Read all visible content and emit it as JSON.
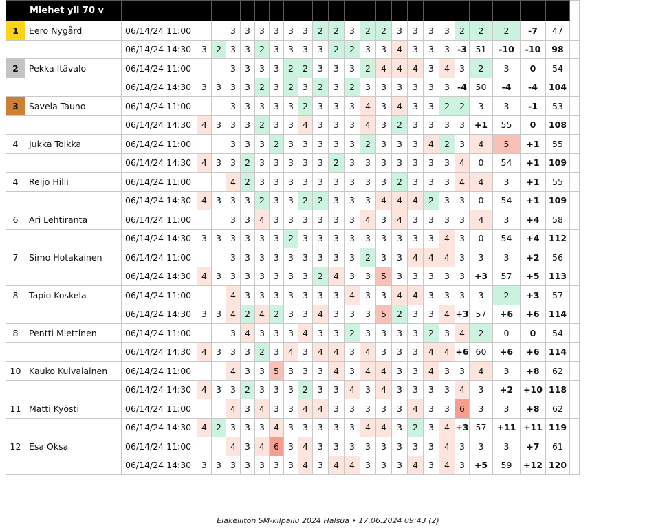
{
  "title": "Miehet yli 70 v",
  "footer": "Eläkeliiton SM-kilpailu 2024 Halsua • 17.06.2024 09:43 (2)",
  "players": [
    {
      "pos": "1",
      "medal": "gold",
      "name": "Eero Nygård",
      "r1": {
        "time": "06/14/24 11:00",
        "pre": [
          "",
          ""
        ],
        "s": [
          "3",
          "3",
          "3",
          "3",
          "3",
          "3",
          "2",
          "2",
          "3",
          "2",
          "2",
          "3",
          "3",
          "3",
          "3",
          "2",
          "2",
          "2"
        ],
        "c": [
          "",
          "",
          "",
          "",
          "",
          "",
          "2",
          "2",
          "",
          "2",
          "2",
          "",
          "",
          "",
          "",
          "2",
          "2",
          "2"
        ],
        "tot": "-7",
        "sum": "47"
      },
      "r2": {
        "time": "06/14/24 14:30",
        "pre": [
          "3",
          "2"
        ],
        "pc": [
          "",
          "2"
        ],
        "s": [
          "3",
          "3",
          "2",
          "3",
          "3",
          "3",
          "3",
          "2",
          "2",
          "3",
          "3",
          "4",
          "3",
          "3",
          "3",
          "-3",
          "51",
          "-10"
        ],
        "c": [
          "",
          "",
          "2",
          "",
          "",
          "",
          "",
          "2",
          "2",
          "",
          "",
          "4",
          "",
          "",
          "",
          "",
          "",
          ""
        ],
        "tot": "-10",
        "sum": "98"
      }
    },
    {
      "pos": "2",
      "medal": "silver",
      "name": "Pekka Itävalo",
      "r1": {
        "time": "06/14/24 11:00",
        "pre": [
          "",
          ""
        ],
        "s": [
          "3",
          "3",
          "3",
          "3",
          "2",
          "2",
          "3",
          "3",
          "3",
          "2",
          "4",
          "4",
          "4",
          "3",
          "4",
          "3",
          "2",
          "3"
        ],
        "c": [
          "",
          "",
          "",
          "",
          "2",
          "2",
          "",
          "",
          "",
          "2",
          "4",
          "4",
          "4",
          "",
          "4",
          "",
          "2",
          ""
        ],
        "tot": "0",
        "sum": "54"
      },
      "r2": {
        "time": "06/14/24 14:30",
        "pre": [
          "3",
          "3"
        ],
        "pc": [
          "",
          ""
        ],
        "s": [
          "3",
          "3",
          "2",
          "3",
          "2",
          "3",
          "2",
          "3",
          "2",
          "3",
          "3",
          "3",
          "3",
          "3",
          "3",
          "-4",
          "50",
          "-4"
        ],
        "c": [
          "",
          "",
          "2",
          "",
          "2",
          "",
          "2",
          "",
          "2",
          "",
          "",
          "",
          "",
          "",
          "",
          "",
          "",
          ""
        ],
        "tot": "-4",
        "sum": "104"
      }
    },
    {
      "pos": "3",
      "medal": "bronze",
      "name": "Savela Tauno",
      "r1": {
        "time": "06/14/24 11:00",
        "pre": [
          "",
          ""
        ],
        "s": [
          "3",
          "3",
          "3",
          "3",
          "3",
          "2",
          "3",
          "3",
          "3",
          "4",
          "3",
          "4",
          "3",
          "3",
          "2",
          "2",
          "3",
          "3"
        ],
        "c": [
          "",
          "",
          "",
          "",
          "",
          "2",
          "",
          "",
          "",
          "4",
          "",
          "4",
          "",
          "",
          "2",
          "2",
          "",
          ""
        ],
        "tot": "-1",
        "sum": "53"
      },
      "r2": {
        "time": "06/14/24 14:30",
        "pre": [
          "4",
          "3"
        ],
        "pc": [
          "4",
          ""
        ],
        "s": [
          "3",
          "3",
          "2",
          "3",
          "3",
          "4",
          "3",
          "3",
          "3",
          "4",
          "3",
          "2",
          "3",
          "3",
          "3",
          "3",
          "+1",
          "55"
        ],
        "c": [
          "",
          "",
          "2",
          "",
          "",
          "4",
          "",
          "",
          "",
          "4",
          "",
          "2",
          "",
          "",
          "",
          "",
          "",
          ""
        ],
        "tot": "0",
        "sum": "108"
      }
    },
    {
      "pos": "4",
      "medal": "",
      "name": "Jukka Toikka",
      "r1": {
        "time": "06/14/24 11:00",
        "pre": [
          "",
          ""
        ],
        "s": [
          "3",
          "3",
          "3",
          "2",
          "3",
          "3",
          "3",
          "3",
          "3",
          "2",
          "3",
          "3",
          "3",
          "4",
          "2",
          "3",
          "4",
          "5"
        ],
        "c": [
          "",
          "",
          "",
          "2",
          "",
          "",
          "",
          "",
          "",
          "2",
          "",
          "",
          "",
          "4",
          "2",
          "",
          "4",
          "5"
        ],
        "tot": "+1",
        "sum": "55"
      },
      "r2": {
        "time": "06/14/24 14:30",
        "pre": [
          "4",
          "3"
        ],
        "pc": [
          "4",
          ""
        ],
        "s": [
          "3",
          "2",
          "3",
          "3",
          "3",
          "3",
          "3",
          "2",
          "3",
          "3",
          "3",
          "3",
          "3",
          "3",
          "3",
          "4",
          "0",
          "54"
        ],
        "c": [
          "",
          "2",
          "",
          "",
          "",
          "",
          "",
          "2",
          "",
          "",
          "",
          "",
          "",
          "",
          "",
          "4",
          "",
          ""
        ],
        "tot": "+1",
        "sum": "109"
      }
    },
    {
      "pos": "4",
      "medal": "",
      "name": "Reijo Hilli",
      "r1": {
        "time": "06/14/24 11:00",
        "pre": [
          "",
          ""
        ],
        "s": [
          "4",
          "2",
          "3",
          "3",
          "3",
          "3",
          "3",
          "3",
          "3",
          "3",
          "3",
          "2",
          "3",
          "3",
          "3",
          "4",
          "4",
          "3"
        ],
        "c": [
          "4",
          "2",
          "",
          "",
          "",
          "",
          "",
          "",
          "",
          "",
          "",
          "2",
          "",
          "",
          "",
          "4",
          "4",
          ""
        ],
        "tot": "+1",
        "sum": "55"
      },
      "r2": {
        "time": "06/14/24 14:30",
        "pre": [
          "4",
          "3"
        ],
        "pc": [
          "4",
          ""
        ],
        "s": [
          "3",
          "3",
          "2",
          "3",
          "3",
          "2",
          "2",
          "3",
          "3",
          "3",
          "4",
          "4",
          "4",
          "2",
          "3",
          "3",
          "0",
          "54"
        ],
        "c": [
          "",
          "",
          "2",
          "",
          "",
          "2",
          "2",
          "",
          "",
          "",
          "4",
          "4",
          "4",
          "2",
          "",
          "",
          "",
          ""
        ],
        "tot": "+1",
        "sum": "109"
      }
    },
    {
      "pos": "6",
      "medal": "",
      "name": "Ari Lehtiranta",
      "r1": {
        "time": "06/14/24 11:00",
        "pre": [
          "",
          ""
        ],
        "s": [
          "3",
          "3",
          "4",
          "3",
          "3",
          "3",
          "3",
          "3",
          "3",
          "4",
          "3",
          "4",
          "3",
          "3",
          "3",
          "3",
          "4",
          "3"
        ],
        "c": [
          "",
          "",
          "4",
          "",
          "",
          "",
          "",
          "",
          "",
          "4",
          "",
          "4",
          "",
          "",
          "",
          "",
          "4",
          ""
        ],
        "tot": "+4",
        "sum": "58"
      },
      "r2": {
        "time": "06/14/24 14:30",
        "pre": [
          "3",
          "3"
        ],
        "pc": [
          "",
          ""
        ],
        "s": [
          "3",
          "3",
          "3",
          "3",
          "2",
          "3",
          "3",
          "3",
          "3",
          "3",
          "3",
          "3",
          "3",
          "3",
          "4",
          "3",
          "0",
          "54"
        ],
        "c": [
          "",
          "",
          "",
          "",
          "2",
          "",
          "",
          "",
          "",
          "",
          "",
          "",
          "",
          "",
          "4",
          "",
          "",
          ""
        ],
        "tot": "+4",
        "sum": "112"
      }
    },
    {
      "pos": "7",
      "medal": "",
      "name": "Simo Hotakainen",
      "r1": {
        "time": "06/14/24 11:00",
        "pre": [
          "",
          ""
        ],
        "s": [
          "3",
          "3",
          "3",
          "3",
          "3",
          "3",
          "3",
          "3",
          "3",
          "2",
          "3",
          "3",
          "4",
          "4",
          "4",
          "3",
          "3",
          "3"
        ],
        "c": [
          "",
          "",
          "",
          "",
          "",
          "",
          "",
          "",
          "",
          "2",
          "",
          "",
          "4",
          "4",
          "4",
          "",
          "",
          ""
        ],
        "tot": "+2",
        "sum": "56"
      },
      "r2": {
        "time": "06/14/24 14:30",
        "pre": [
          "4",
          "3"
        ],
        "pc": [
          "4",
          ""
        ],
        "s": [
          "3",
          "3",
          "3",
          "3",
          "3",
          "3",
          "2",
          "4",
          "3",
          "3",
          "5",
          "3",
          "3",
          "3",
          "3",
          "3",
          "+3",
          "57"
        ],
        "c": [
          "",
          "",
          "",
          "",
          "",
          "",
          "2",
          "4",
          "",
          "",
          "5",
          "",
          "",
          "",
          "",
          "",
          "",
          ""
        ],
        "tot": "+5",
        "sum": "113"
      }
    },
    {
      "pos": "8",
      "medal": "",
      "name": "Tapio Koskela",
      "r1": {
        "time": "06/14/24 11:00",
        "pre": [
          "",
          ""
        ],
        "s": [
          "4",
          "3",
          "3",
          "3",
          "3",
          "3",
          "3",
          "3",
          "4",
          "3",
          "3",
          "4",
          "4",
          "3",
          "3",
          "3",
          "3",
          "2"
        ],
        "c": [
          "4",
          "",
          "",
          "",
          "",
          "",
          "",
          "",
          "4",
          "",
          "",
          "4",
          "4",
          "",
          "",
          "",
          "",
          "2"
        ],
        "tot": "+3",
        "sum": "57"
      },
      "r2": {
        "time": "06/14/24 14:30",
        "pre": [
          "3",
          "3"
        ],
        "pc": [
          "",
          ""
        ],
        "s": [
          "4",
          "2",
          "4",
          "2",
          "3",
          "3",
          "4",
          "3",
          "3",
          "3",
          "5",
          "2",
          "3",
          "3",
          "4",
          "+3",
          "57",
          "+6"
        ],
        "c": [
          "4",
          "2",
          "4",
          "2",
          "",
          "",
          "4",
          "",
          "",
          "",
          "5",
          "2",
          "",
          "",
          "4",
          "",
          "",
          ""
        ],
        "tot": "+6",
        "sum": "114"
      }
    },
    {
      "pos": "8",
      "medal": "",
      "name": "Pentti Miettinen",
      "r1": {
        "time": "06/14/24 11:00",
        "pre": [
          "",
          ""
        ],
        "s": [
          "3",
          "4",
          "3",
          "3",
          "3",
          "4",
          "3",
          "3",
          "2",
          "3",
          "3",
          "3",
          "3",
          "2",
          "3",
          "4",
          "2",
          "0"
        ],
        "c": [
          "",
          "4",
          "",
          "",
          "",
          "4",
          "",
          "",
          "2",
          "",
          "",
          "",
          "",
          "2",
          "",
          "4",
          "2",
          ""
        ],
        "tot": "0",
        "sum": "54"
      },
      "r2": {
        "time": "06/14/24 14:30",
        "pre": [
          "4",
          "3"
        ],
        "pc": [
          "4",
          ""
        ],
        "s": [
          "3",
          "3",
          "2",
          "3",
          "4",
          "3",
          "4",
          "4",
          "3",
          "4",
          "3",
          "3",
          "3",
          "4",
          "4",
          "+6",
          "60",
          "+6"
        ],
        "c": [
          "",
          "",
          "2",
          "",
          "4",
          "",
          "4",
          "4",
          "",
          "4",
          "",
          "",
          "",
          "4",
          "4",
          "",
          "",
          ""
        ],
        "tot": "+6",
        "sum": "114"
      }
    },
    {
      "pos": "10",
      "medal": "",
      "name": "Kauko Kuivalainen",
      "r1": {
        "time": "06/14/24 11:00",
        "pre": [
          "",
          ""
        ],
        "s": [
          "4",
          "3",
          "3",
          "5",
          "3",
          "3",
          "3",
          "4",
          "3",
          "4",
          "4",
          "3",
          "3",
          "4",
          "3",
          "3",
          "4",
          "3"
        ],
        "c": [
          "4",
          "",
          "",
          "5",
          "",
          "",
          "",
          "4",
          "",
          "4",
          "4",
          "",
          "",
          "4",
          "",
          "",
          "4",
          ""
        ],
        "tot": "+8",
        "sum": "62"
      },
      "r2": {
        "time": "06/14/24 14:30",
        "pre": [
          "4",
          "3"
        ],
        "pc": [
          "4",
          ""
        ],
        "s": [
          "3",
          "2",
          "3",
          "3",
          "3",
          "2",
          "3",
          "3",
          "4",
          "3",
          "4",
          "3",
          "3",
          "3",
          "3",
          "4",
          "3",
          "+2"
        ],
        "c": [
          "",
          "2",
          "",
          "",
          "",
          "2",
          "",
          "",
          "4",
          "",
          "4",
          "",
          "",
          "",
          "",
          "4",
          "",
          ""
        ],
        "tot": "+10",
        "sum": "118"
      }
    },
    {
      "pos": "11",
      "medal": "",
      "name": "Matti Kyösti",
      "r1": {
        "time": "06/14/24 11:00",
        "pre": [
          "",
          ""
        ],
        "s": [
          "4",
          "3",
          "4",
          "3",
          "3",
          "4",
          "4",
          "3",
          "3",
          "3",
          "3",
          "3",
          "4",
          "3",
          "3",
          "6",
          "3",
          "3"
        ],
        "c": [
          "4",
          "",
          "4",
          "",
          "",
          "4",
          "4",
          "",
          "",
          "",
          "",
          "",
          "4",
          "",
          "",
          "6",
          "",
          ""
        ],
        "tot": "+8",
        "sum": "62"
      },
      "r2": {
        "time": "06/14/24 14:30",
        "pre": [
          "4",
          "2"
        ],
        "pc": [
          "4",
          "2"
        ],
        "s": [
          "3",
          "3",
          "3",
          "4",
          "3",
          "3",
          "3",
          "3",
          "3",
          "4",
          "4",
          "3",
          "2",
          "3",
          "4",
          "+3",
          "57",
          "+11"
        ],
        "c": [
          "",
          "",
          "",
          "4",
          "",
          "",
          "",
          "",
          "",
          "4",
          "4",
          "",
          "2",
          "",
          "4",
          "",
          "",
          ""
        ],
        "tot": "+11",
        "sum": "119"
      }
    },
    {
      "pos": "12",
      "medal": "",
      "name": "Esa Oksa",
      "r1": {
        "time": "06/14/24 11:00",
        "pre": [
          "",
          ""
        ],
        "s": [
          "4",
          "3",
          "4",
          "6",
          "3",
          "4",
          "3",
          "3",
          "3",
          "3",
          "3",
          "3",
          "3",
          "3",
          "4",
          "3",
          "3",
          "3"
        ],
        "c": [
          "4",
          "",
          "4",
          "6",
          "",
          "4",
          "",
          "",
          "",
          "",
          "",
          "",
          "",
          "",
          "4",
          "",
          "",
          ""
        ],
        "tot": "+7",
        "sum": "61"
      },
      "r2": {
        "time": "06/14/24 14:30",
        "pre": [
          "3",
          "3"
        ],
        "pc": [
          "",
          ""
        ],
        "s": [
          "3",
          "3",
          "3",
          "3",
          "3",
          "4",
          "3",
          "4",
          "4",
          "3",
          "3",
          "3",
          "4",
          "3",
          "4",
          "3",
          "+5",
          "59"
        ],
        "c": [
          "",
          "",
          "",
          "",
          "",
          "4",
          "",
          "4",
          "4",
          "",
          "",
          "",
          "4",
          "",
          "4",
          "",
          "",
          ""
        ],
        "tot": "+12",
        "sum": "120"
      }
    }
  ]
}
